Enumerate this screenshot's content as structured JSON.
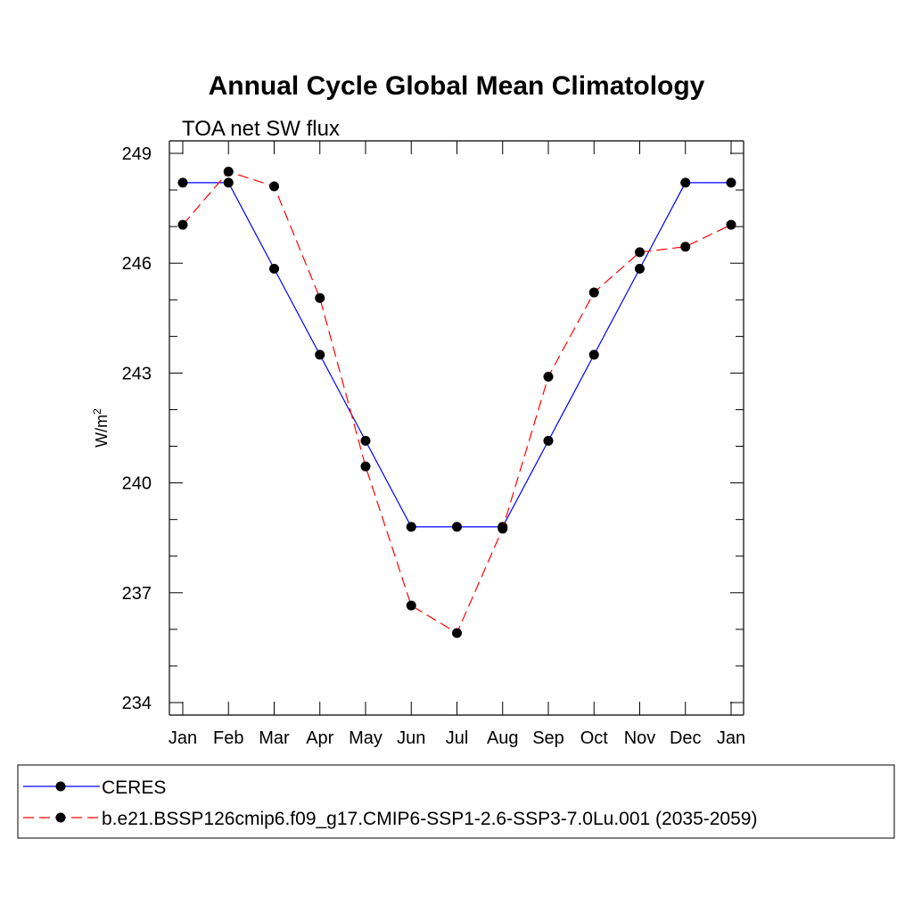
{
  "chart_data": {
    "type": "line",
    "title": "Annual Cycle Global Mean Climatology",
    "subtitle": "TOA net SW flux",
    "ylabel": "W/m",
    "ylabel_superscript": "2",
    "xlabel": "",
    "categories": [
      "Jan",
      "Feb",
      "Mar",
      "Apr",
      "May",
      "Jun",
      "Jul",
      "Aug",
      "Sep",
      "Oct",
      "Nov",
      "Dec",
      "Jan"
    ],
    "ylim": [
      234,
      249
    ],
    "yticks": [
      234,
      237,
      240,
      243,
      246,
      249
    ],
    "yticks_labels": [
      "234",
      "237",
      "240",
      "243",
      "246",
      "249"
    ],
    "grid": false,
    "legend_position": "bottom",
    "series": [
      {
        "name": "CERES",
        "color": "#0000ff",
        "line_style": "solid",
        "marker": "filled-circle",
        "values": [
          248.2,
          248.2,
          245.85,
          243.5,
          241.15,
          238.8,
          238.8,
          238.8,
          241.15,
          243.5,
          245.85,
          248.2,
          248.2
        ]
      },
      {
        "name": "b.e21.BSSP126cmip6.f09_g17.CMIP6-SSP1-2.6-SSP3-7.0Lu.001 (2035-2059)",
        "color": "#ff0000",
        "line_style": "dashed",
        "marker": "filled-circle",
        "values": [
          247.05,
          248.5,
          248.1,
          245.05,
          240.45,
          236.65,
          235.9,
          238.75,
          242.9,
          245.2,
          246.3,
          246.45,
          247.05
        ]
      }
    ]
  }
}
